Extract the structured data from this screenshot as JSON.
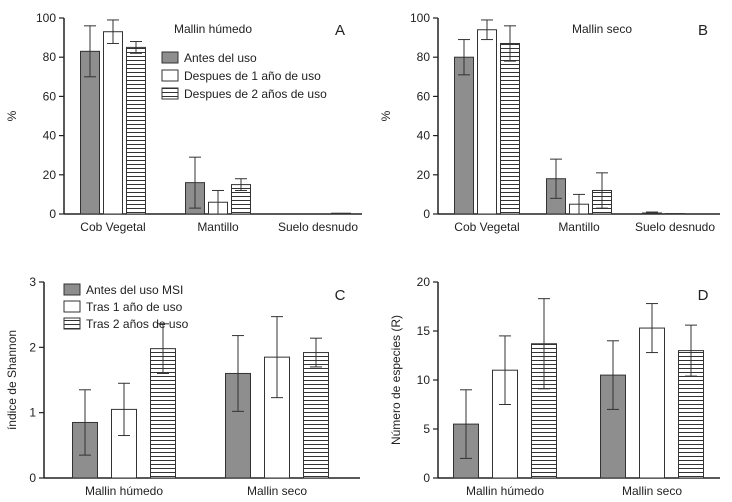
{
  "colors": {
    "antes": "#8e8e8e",
    "despues1": "#ffffff",
    "despues2": "stripes",
    "axis": "#222222"
  },
  "chart_data": [
    {
      "type": "bar",
      "panel_letter": "A",
      "title": "Mallin húmedo",
      "xlabel": "",
      "ylabel": "%",
      "ylim": [
        0,
        100
      ],
      "yticks": [
        "0",
        "20",
        "40",
        "60",
        "80",
        "100"
      ],
      "categories": [
        "Cob Vegetal",
        "Mantillo",
        "Suelo desnudo"
      ],
      "legend_position": "upper-right",
      "series": [
        {
          "name": "Antes del uso",
          "values": [
            83,
            16,
            0
          ],
          "errors": [
            13,
            13,
            0
          ]
        },
        {
          "name": "Despues de 1 año de uso",
          "values": [
            93,
            6,
            0
          ],
          "errors": [
            6,
            6,
            0
          ]
        },
        {
          "name": "Despues de 2 años de uso",
          "values": [
            85,
            15,
            0.4
          ],
          "errors": [
            3,
            3,
            0
          ]
        }
      ]
    },
    {
      "type": "bar",
      "panel_letter": "B",
      "title": "Mallin seco",
      "xlabel": "",
      "ylabel": "%",
      "ylim": [
        0,
        100
      ],
      "yticks": [
        "0",
        "20",
        "40",
        "60",
        "80",
        "100"
      ],
      "categories": [
        "Cob Vegetal",
        "Mantillo",
        "Suelo desnudo"
      ],
      "series": [
        {
          "values": [
            80,
            18,
            0.5
          ],
          "errors": [
            9,
            10,
            0.5
          ]
        },
        {
          "values": [
            94,
            5,
            0.2
          ],
          "errors": [
            5,
            5,
            0
          ]
        },
        {
          "values": [
            87,
            12,
            0
          ],
          "errors": [
            9,
            9,
            0
          ]
        }
      ]
    },
    {
      "type": "bar",
      "panel_letter": "C",
      "title": "",
      "xlabel": "",
      "ylabel": "índice de Shannon",
      "ylim": [
        0,
        3
      ],
      "yticks": [
        "0",
        "1",
        "2",
        "3"
      ],
      "categories": [
        "Mallin húmedo",
        "Mallin seco"
      ],
      "legend_position": "upper-left",
      "series": [
        {
          "name": "Antes del uso MSI",
          "values": [
            0.85,
            1.6
          ],
          "errors": [
            0.5,
            0.58
          ]
        },
        {
          "name": "Tras 1 año de uso",
          "values": [
            1.05,
            1.85
          ],
          "errors": [
            0.4,
            0.62
          ]
        },
        {
          "name": "Tras 2 años de uso",
          "values": [
            1.98,
            1.92
          ],
          "errors": [
            0.38,
            0.22
          ]
        }
      ]
    },
    {
      "type": "bar",
      "panel_letter": "D",
      "title": "",
      "xlabel": "",
      "ylabel": "Número de especies (R)",
      "ylim": [
        0,
        20
      ],
      "yticks": [
        "0",
        "5",
        "10",
        "15",
        "20"
      ],
      "categories": [
        "Mallin húmedo",
        "Mallin seco"
      ],
      "series": [
        {
          "values": [
            5.5,
            10.5
          ],
          "errors": [
            3.5,
            3.5
          ]
        },
        {
          "values": [
            11,
            15.3
          ],
          "errors": [
            3.5,
            2.5
          ]
        },
        {
          "values": [
            13.7,
            13
          ],
          "errors": [
            4.6,
            2.6
          ]
        }
      ]
    }
  ]
}
